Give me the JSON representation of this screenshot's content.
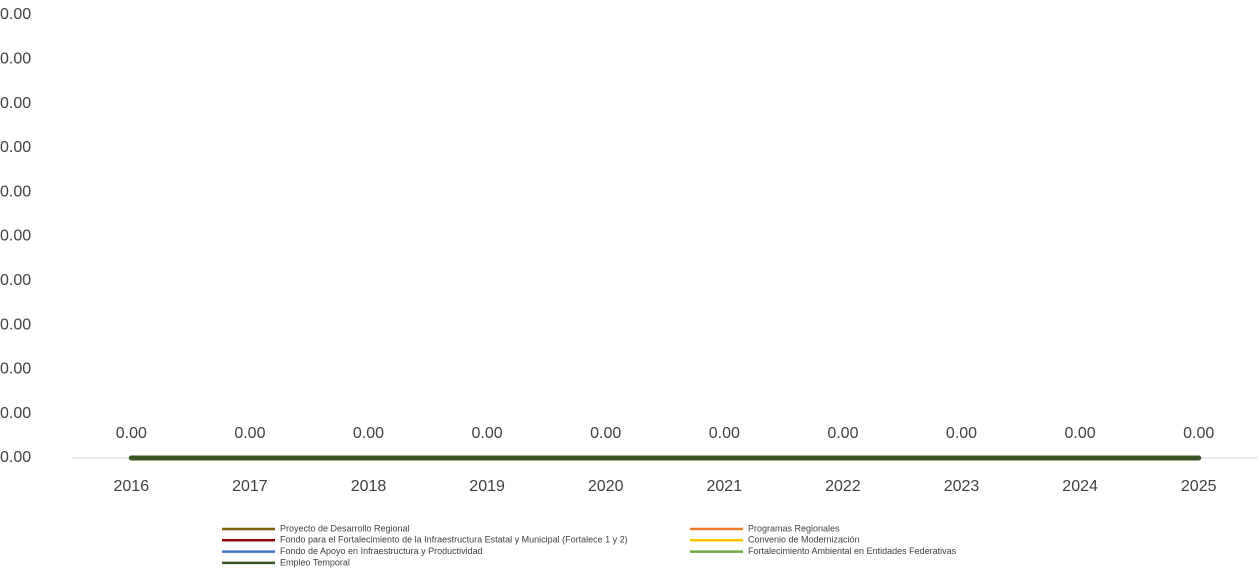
{
  "chart_data": {
    "type": "line",
    "categories": [
      "2016",
      "2017",
      "2018",
      "2019",
      "2020",
      "2021",
      "2022",
      "2023",
      "2024",
      "2025"
    ],
    "ylim": [
      0,
      0.001
    ],
    "yticks": [
      {
        "value": 0,
        "label": "0.00"
      },
      {
        "value": 0.0001,
        "label": "0.00"
      },
      {
        "value": 0.0002,
        "label": "0.00"
      },
      {
        "value": 0.0003,
        "label": "0.00"
      },
      {
        "value": 0.0004,
        "label": "0.00"
      },
      {
        "value": 0.0005,
        "label": "0.00"
      },
      {
        "value": 0.0006,
        "label": "0.00"
      },
      {
        "value": 0.0007,
        "label": "0.00"
      },
      {
        "value": 0.0008,
        "label": "0.00"
      },
      {
        "value": 0.0009,
        "label": "0.00"
      },
      {
        "value": 0.001,
        "label": "0.00"
      }
    ],
    "series": [
      {
        "name": "Proyecto de Desarrollo Regional",
        "color": "#7f6000",
        "values": [
          0,
          0,
          0,
          0,
          0,
          0,
          0,
          0,
          0,
          0
        ]
      },
      {
        "name": "Programas Regionales",
        "color": "#ed7d31",
        "values": [
          0,
          0,
          0,
          0,
          0,
          0,
          0,
          0,
          0,
          0
        ]
      },
      {
        "name": "Fondo para el Fortalecimiento de la Infraestructura Estatal y Municipal (Fortalece 1 y 2)",
        "color": "#8b0000",
        "values": [
          0,
          0,
          0,
          0,
          0,
          0,
          0,
          0,
          0,
          0
        ]
      },
      {
        "name": "Convenio de Modernización",
        "color": "#ffc000",
        "values": [
          0,
          0,
          0,
          0,
          0,
          0,
          0,
          0,
          0,
          0
        ]
      },
      {
        "name": "Fondo de Apoyo en Infraestructura y Productividad",
        "color": "#4472c4",
        "values": [
          0,
          0,
          0,
          0,
          0,
          0,
          0,
          0,
          0,
          0
        ]
      },
      {
        "name": "Fortalecimiento Ambiental en Entidades Federativas",
        "color": "#70ad47",
        "values": [
          0,
          0,
          0,
          0,
          0,
          0,
          0,
          0,
          0,
          0
        ]
      },
      {
        "name": "Empleo Temporal",
        "color": "#375623",
        "values": [
          0,
          0,
          0,
          0,
          0,
          0,
          0,
          0,
          0,
          0
        ],
        "value_labels": [
          "0.00",
          "0.00",
          "0.00",
          "0.00",
          "0.00",
          "0.00",
          "0.00",
          "0.00",
          "0.00",
          "0.00"
        ]
      }
    ]
  }
}
